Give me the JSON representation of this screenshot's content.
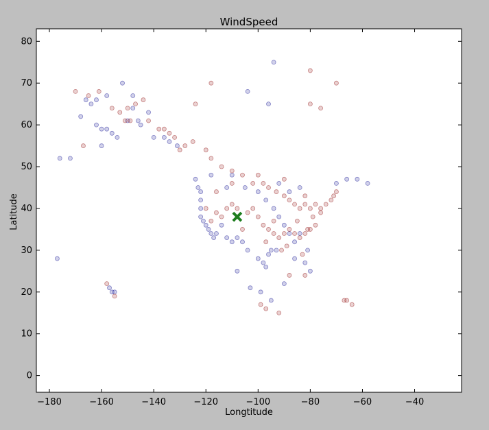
{
  "chart_data": {
    "type": "scatter",
    "title": "WindSpeed",
    "xlabel": "Longtitude",
    "ylabel": "Latitude",
    "xlim": [
      -185,
      -22
    ],
    "ylim": [
      -4,
      83
    ],
    "xticks": [
      -180,
      -160,
      -140,
      -120,
      -100,
      -80,
      -60,
      -40
    ],
    "yticks": [
      0,
      10,
      20,
      30,
      40,
      50,
      60,
      70,
      80
    ],
    "grid": false,
    "colors": {
      "low": "#00008b",
      "high": "#8b0000",
      "marker": "#1e7d1e",
      "figure_bg": "#bfbfbf",
      "axes_bg": "#ffffff"
    },
    "marker": {
      "x": -108,
      "y": 38,
      "shape": "x"
    },
    "series": [
      {
        "values": [
          [
            -177,
            28
          ],
          [
            -176,
            52
          ],
          [
            -172,
            52
          ],
          [
            -168,
            62
          ],
          [
            -166,
            66
          ],
          [
            -164,
            65
          ],
          [
            -162,
            66
          ],
          [
            -162,
            60
          ],
          [
            -160,
            59
          ],
          [
            -160,
            55
          ],
          [
            -158,
            67
          ],
          [
            -158,
            59
          ],
          [
            -156,
            58
          ],
          [
            -154,
            57
          ],
          [
            -152,
            70
          ],
          [
            -150,
            61
          ],
          [
            -148,
            64
          ],
          [
            -148,
            67
          ],
          [
            -146,
            61
          ],
          [
            -145,
            60
          ],
          [
            -142,
            63
          ],
          [
            -140,
            57
          ],
          [
            -136,
            57
          ],
          [
            -134,
            56
          ],
          [
            -131,
            55
          ],
          [
            -124,
            47
          ],
          [
            -123,
            45
          ],
          [
            -122,
            44
          ],
          [
            -122,
            42
          ],
          [
            -122,
            40
          ],
          [
            -122,
            38
          ],
          [
            -121,
            37
          ],
          [
            -120,
            36
          ],
          [
            -119,
            35
          ],
          [
            -118,
            34
          ],
          [
            -117,
            33
          ],
          [
            -116,
            34
          ],
          [
            -114,
            36
          ],
          [
            -112,
            33
          ],
          [
            -110,
            32
          ],
          [
            -108,
            33
          ],
          [
            -106,
            32
          ],
          [
            -104,
            30
          ],
          [
            -100,
            28
          ],
          [
            -98,
            27
          ],
          [
            -97,
            26
          ],
          [
            -96,
            29
          ],
          [
            -95,
            30
          ],
          [
            -93,
            30
          ],
          [
            -94,
            75
          ],
          [
            -96,
            65
          ],
          [
            -104,
            68
          ],
          [
            -110,
            48
          ],
          [
            -105,
            45
          ],
          [
            -100,
            44
          ],
          [
            -97,
            42
          ],
          [
            -94,
            40
          ],
          [
            -92,
            38
          ],
          [
            -90,
            36
          ],
          [
            -88,
            34
          ],
          [
            -86,
            32
          ],
          [
            -84,
            34
          ],
          [
            -81,
            30
          ],
          [
            -80,
            25
          ],
          [
            -82,
            27
          ],
          [
            -84,
            45
          ],
          [
            -88,
            44
          ],
          [
            -92,
            46
          ],
          [
            -70,
            46
          ],
          [
            -66,
            47
          ],
          [
            -62,
            47
          ],
          [
            -58,
            46
          ],
          [
            -86,
            28
          ],
          [
            -90,
            22
          ],
          [
            -99,
            20
          ],
          [
            -103,
            21
          ],
          [
            -108,
            25
          ],
          [
            -95,
            18
          ],
          [
            -157,
            21
          ],
          [
            -156,
            20
          ],
          [
            -155,
            20
          ],
          [
            -112,
            45
          ],
          [
            -118,
            48
          ]
        ]
      },
      {
        "values": [
          [
            -170,
            68
          ],
          [
            -167,
            55
          ],
          [
            -165,
            67
          ],
          [
            -161,
            68
          ],
          [
            -156,
            64
          ],
          [
            -153,
            63
          ],
          [
            -151,
            61
          ],
          [
            -150,
            64
          ],
          [
            -149,
            61
          ],
          [
            -147,
            65
          ],
          [
            -144,
            66
          ],
          [
            -142,
            61
          ],
          [
            -138,
            59
          ],
          [
            -136,
            59
          ],
          [
            -134,
            58
          ],
          [
            -132,
            57
          ],
          [
            -130,
            54
          ],
          [
            -128,
            55
          ],
          [
            -125,
            56
          ],
          [
            -124,
            65
          ],
          [
            -120,
            54
          ],
          [
            -118,
            52
          ],
          [
            -114,
            50
          ],
          [
            -110,
            49
          ],
          [
            -106,
            48
          ],
          [
            -102,
            46
          ],
          [
            -98,
            46
          ],
          [
            -96,
            45
          ],
          [
            -93,
            44
          ],
          [
            -90,
            43
          ],
          [
            -88,
            42
          ],
          [
            -86,
            41
          ],
          [
            -84,
            40
          ],
          [
            -82,
            41
          ],
          [
            -80,
            40
          ],
          [
            -78,
            41
          ],
          [
            -76,
            40
          ],
          [
            -74,
            41
          ],
          [
            -72,
            42
          ],
          [
            -71,
            43
          ],
          [
            -70,
            44
          ],
          [
            -78,
            36
          ],
          [
            -80,
            35
          ],
          [
            -82,
            34
          ],
          [
            -84,
            33
          ],
          [
            -86,
            34
          ],
          [
            -88,
            35
          ],
          [
            -90,
            34
          ],
          [
            -92,
            33
          ],
          [
            -94,
            34
          ],
          [
            -96,
            35
          ],
          [
            -98,
            36
          ],
          [
            -100,
            38
          ],
          [
            -102,
            40
          ],
          [
            -104,
            39
          ],
          [
            -106,
            35
          ],
          [
            -108,
            40
          ],
          [
            -110,
            41
          ],
          [
            -112,
            40
          ],
          [
            -114,
            38
          ],
          [
            -116,
            39
          ],
          [
            -118,
            37
          ],
          [
            -120,
            40
          ],
          [
            -116,
            44
          ],
          [
            -110,
            46
          ],
          [
            -100,
            48
          ],
          [
            -90,
            47
          ],
          [
            -82,
            43
          ],
          [
            -76,
            39
          ],
          [
            -79,
            38
          ],
          [
            -85,
            37
          ],
          [
            -89,
            31
          ],
          [
            -91,
            30
          ],
          [
            -97,
            32
          ],
          [
            -94,
            37
          ],
          [
            -81,
            35
          ],
          [
            -83,
            29
          ],
          [
            -82,
            24
          ],
          [
            -88,
            24
          ],
          [
            -99,
            17
          ],
          [
            -97,
            16
          ],
          [
            -92,
            15
          ],
          [
            -80,
            73
          ],
          [
            -70,
            70
          ],
          [
            -76,
            64
          ],
          [
            -67,
            18
          ],
          [
            -66,
            18
          ],
          [
            -64,
            17
          ],
          [
            -158,
            22
          ],
          [
            -155,
            19
          ],
          [
            -118,
            70
          ],
          [
            -80,
            65
          ]
        ]
      }
    ]
  }
}
